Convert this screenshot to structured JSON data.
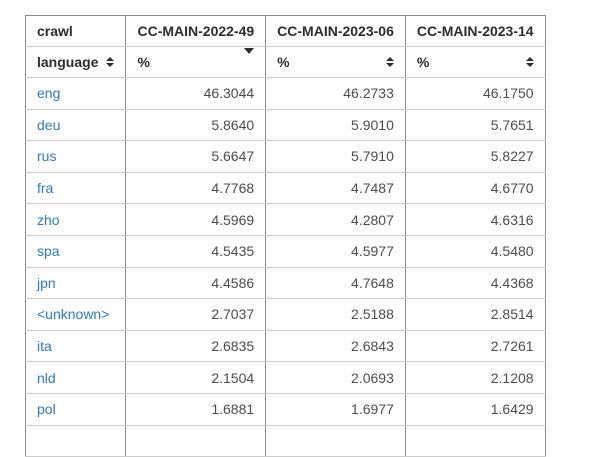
{
  "table": {
    "header_row1": {
      "crawl_label": "crawl",
      "crawls": [
        "CC-MAIN-2022-49",
        "CC-MAIN-2023-06",
        "CC-MAIN-2023-14"
      ]
    },
    "header_row2": {
      "language_label": "language",
      "percent_label": "%",
      "sort_states": [
        "both",
        "desc",
        "both",
        "both"
      ]
    },
    "rows": [
      {
        "language": "eng",
        "values": [
          "46.3044",
          "46.2733",
          "46.1750"
        ]
      },
      {
        "language": "deu",
        "values": [
          "5.8640",
          "5.9010",
          "5.7651"
        ]
      },
      {
        "language": "rus",
        "values": [
          "5.6647",
          "5.7910",
          "5.8227"
        ]
      },
      {
        "language": "fra",
        "values": [
          "4.7768",
          "4.7487",
          "4.6770"
        ]
      },
      {
        "language": "zho",
        "values": [
          "4.5969",
          "4.2807",
          "4.6316"
        ]
      },
      {
        "language": "spa",
        "values": [
          "4.5435",
          "4.5977",
          "4.5480"
        ]
      },
      {
        "language": "jpn",
        "values": [
          "4.4586",
          "4.7648",
          "4.4368"
        ]
      },
      {
        "language": "<unknown>",
        "values": [
          "2.7037",
          "2.5188",
          "2.8514"
        ]
      },
      {
        "language": "ita",
        "values": [
          "2.6835",
          "2.6843",
          "2.7261"
        ]
      },
      {
        "language": "nld",
        "values": [
          "2.1504",
          "2.0693",
          "2.1208"
        ]
      },
      {
        "language": "pol",
        "values": [
          "1.6881",
          "1.6977",
          "1.6429"
        ]
      }
    ],
    "colors": {
      "link": "#337ab7",
      "header_text": "#2d2d2d",
      "value_text": "#4d4d4d",
      "border_vertical": "#8c8c8c",
      "border_horizontal": "#cbcbcb"
    }
  }
}
